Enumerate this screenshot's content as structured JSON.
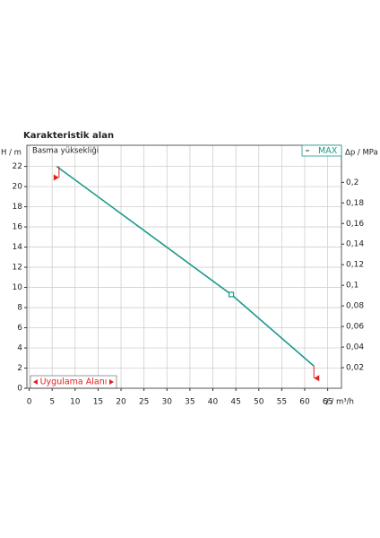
{
  "chart_data": {
    "type": "line",
    "title": "Karakteristik alan",
    "y_label": "H / m",
    "y_sublabel": "Basma yüksekliği",
    "y2_label": "Δp / MPa",
    "x_label": "Q / m³/h",
    "annotation": "Uygulama Alanı",
    "xlim": [
      -0.5,
      68
    ],
    "xticks": [
      0,
      5,
      10,
      15,
      20,
      25,
      30,
      35,
      40,
      45,
      50,
      55,
      60,
      65
    ],
    "ylim": [
      0,
      24.1
    ],
    "yticks": [
      0,
      2,
      4,
      6,
      8,
      10,
      12,
      14,
      16,
      18,
      20,
      22
    ],
    "y2lim": [
      0,
      0.236
    ],
    "y2ticks": [
      {
        "value": 0.02,
        "label": "0,02"
      },
      {
        "value": 0.04,
        "label": "0,04"
      },
      {
        "value": 0.06,
        "label": "0,06"
      },
      {
        "value": 0.08,
        "label": "0,08"
      },
      {
        "value": 0.1,
        "label": "0,1"
      },
      {
        "value": 0.12,
        "label": "0,12"
      },
      {
        "value": 0.14,
        "label": "0,14"
      },
      {
        "value": 0.16,
        "label": "0,16"
      },
      {
        "value": 0.18,
        "label": "0,18"
      },
      {
        "value": 0.2,
        "label": "0,2"
      }
    ],
    "grid": true,
    "legend": "top-right",
    "series": [
      {
        "name": "MAX",
        "color": "#1a9a8a",
        "x": [
          6,
          44,
          62
        ],
        "values": [
          22,
          9.3,
          2.2
        ]
      }
    ],
    "limit_markers": {
      "color": "#e02020",
      "x": [
        6.5,
        62
      ],
      "values": [
        20.9,
        1
      ]
    }
  }
}
